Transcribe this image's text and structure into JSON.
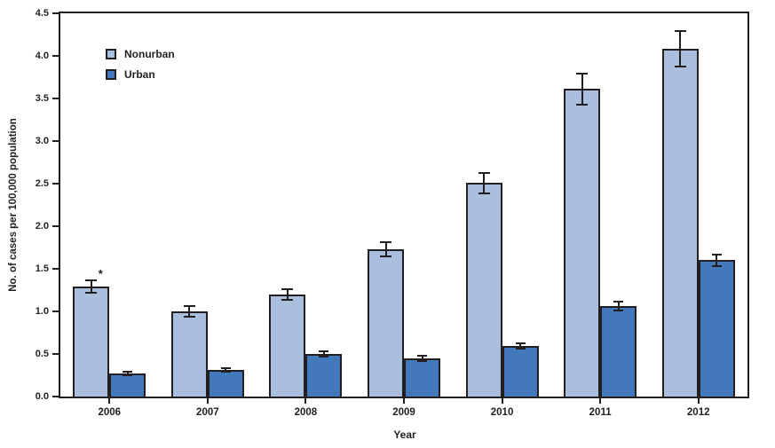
{
  "chart_data": {
    "type": "bar",
    "title": "",
    "categories": [
      "2006",
      "2007",
      "2008",
      "2009",
      "2010",
      "2011",
      "2012"
    ],
    "series": [
      {
        "name": "Nonurban",
        "color": "#aabfde",
        "values": [
          1.29,
          1.0,
          1.2,
          1.73,
          2.51,
          3.61,
          4.08
        ],
        "errors": [
          0.07,
          0.06,
          0.06,
          0.08,
          0.12,
          0.18,
          0.21
        ]
      },
      {
        "name": "Urban",
        "color": "#4279ba",
        "values": [
          0.27,
          0.31,
          0.5,
          0.45,
          0.59,
          1.06,
          1.6
        ],
        "errors": [
          0.02,
          0.02,
          0.03,
          0.03,
          0.03,
          0.05,
          0.07
        ]
      }
    ],
    "xlabel": "Year",
    "ylabel": "No. of cases per 100,000 population",
    "ylim": [
      0,
      4.5
    ],
    "yticks": [
      "0.0",
      "0.5",
      "1.0",
      "1.5",
      "2.0",
      "2.5",
      "3.0",
      "3.5",
      "4.0",
      "4.5"
    ],
    "legend": {
      "position": "top-left",
      "entries": [
        "Nonurban",
        "Urban"
      ]
    },
    "annotation": {
      "text": "*",
      "category": "2006",
      "series": "Nonurban"
    },
    "grid": false,
    "error_bars": true,
    "axis_color": "#231f20",
    "background": "#ffffff"
  }
}
